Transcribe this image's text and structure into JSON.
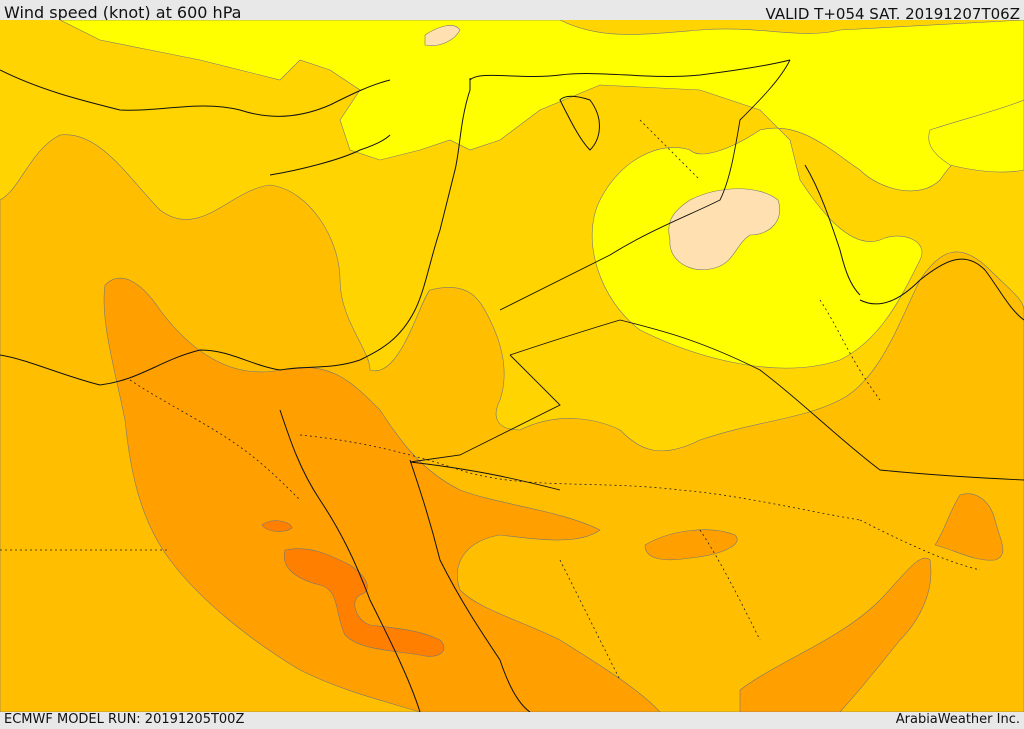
{
  "header": {
    "title": "Wind speed (knot) at 600 hPa",
    "valid": "VALID T+054 SAT. 20191207T06Z"
  },
  "footer": {
    "model_run": "ECMWF MODEL RUN: 20191205T00Z",
    "credit": "ArabiaWeather Inc."
  },
  "palette": {
    "pale": "#ffe0b0",
    "yellow": "#ffff00",
    "gold": "#ffd400",
    "amber": "#ffbf00",
    "orange": "#ff9f00",
    "deep_orange": "#ff7f00"
  }
}
